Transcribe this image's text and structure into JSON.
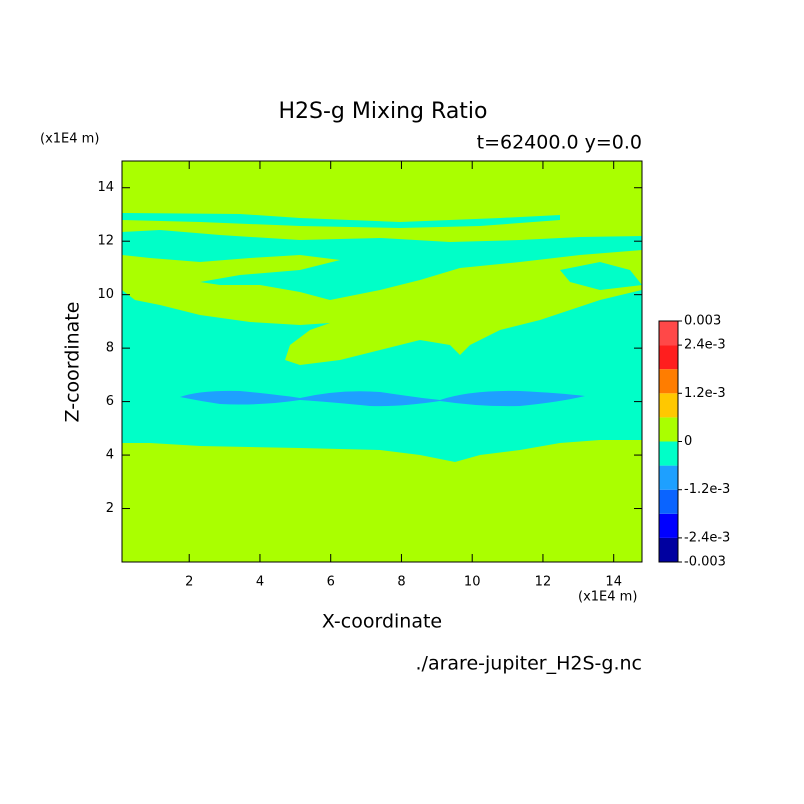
{
  "chart_data": {
    "type": "contour",
    "title": "H2S-g Mixing Ratio",
    "subtitle": "t=62400.0 y=0.0",
    "x_label": "X-coordinate",
    "y_label": "Z-coordinate",
    "x_unit": "(x1E4 m)",
    "y_unit": "(x1E4 m)",
    "source": "./arare-jupiter_H2S-g.nc",
    "xlim": [
      0.1,
      14.8
    ],
    "ylim": [
      0,
      15
    ],
    "xticks": [
      2,
      4,
      6,
      8,
      10,
      12,
      14
    ],
    "yticks": [
      2,
      4,
      6,
      8,
      10,
      12,
      14
    ],
    "levels": [
      -0.003,
      -0.0024,
      -0.0018,
      -0.0012,
      -0.0006,
      0,
      0.0006,
      0.0012,
      0.0018,
      0.0024,
      0.003
    ],
    "colors": [
      "#0000a0",
      "#0000ff",
      "#0a64ff",
      "#1ea0ff",
      "#00ffc8",
      "#aaff00",
      "#ffc800",
      "#ff7d00",
      "#ff1e1e",
      "#ff4848"
    ],
    "colorbar_ticks": [
      -0.003,
      {
        "value": -0.0024,
        "label": "-2.4e-3"
      },
      {
        "value": -0.0012,
        "label": "-1.2e-3"
      },
      0,
      {
        "value": 0.0012,
        "label": "1.2e-3"
      },
      {
        "value": 0.0024,
        "label": "2.4e-3"
      },
      0.003
    ]
  }
}
